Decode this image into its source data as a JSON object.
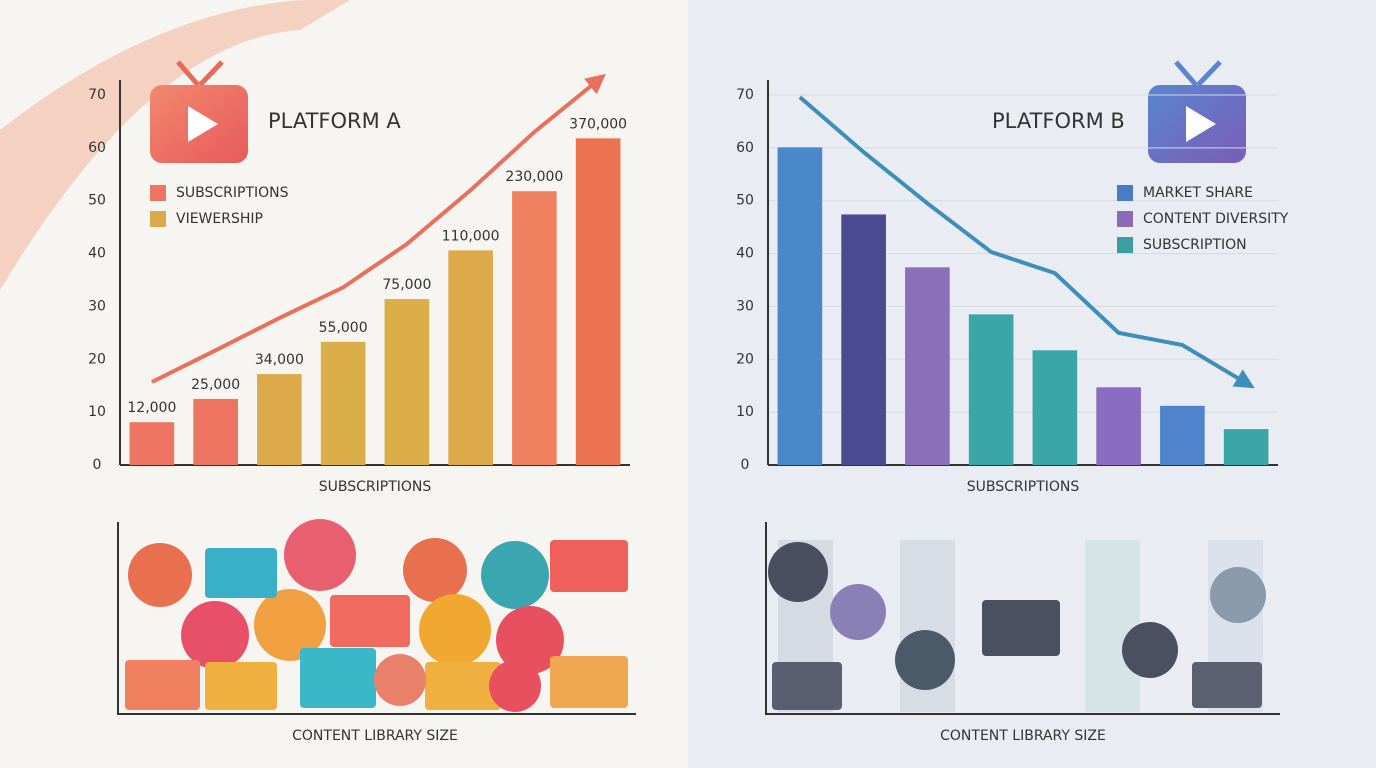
{
  "chart_data": [
    {
      "type": "bar",
      "title": "PLATFORM A",
      "xlabel": "SUBSCRIPTIONS",
      "caption": "CONTENT LIBRARY SIZE",
      "categories": [
        null,
        null,
        null,
        null,
        null,
        null,
        null,
        null
      ],
      "legend": [
        {
          "name": "SUBSCRIPTIONS",
          "color": "#ef7563"
        },
        {
          "name": "VIEWERSHIP",
          "color": "#d9a94a"
        }
      ],
      "series": [
        {
          "type": "bar",
          "colors": [
            "#ef7563",
            "#ee7462",
            "#dcaa48",
            "#dcae4a",
            "#dcae48",
            "#dcaa48",
            "#ef8060",
            "#ec7450"
          ],
          "values": [
            8.1,
            12.5,
            17.2,
            23.3,
            31.4,
            40.6,
            51.8,
            61.8
          ]
        },
        {
          "type": "line",
          "color": "#e8705c",
          "values": [
            15.7,
            21.7,
            27.8,
            33.6,
            41.8,
            52,
            63,
            72.8
          ]
        }
      ],
      "bar_labels": [
        "12,000",
        "25,000",
        "34,000",
        "55,000",
        "75,000",
        "110,000",
        "230,000",
        "370,000"
      ],
      "ylim": [
        0,
        70
      ],
      "yticks": [
        0,
        10,
        20,
        30,
        40,
        50,
        60,
        70
      ],
      "grid": false
    },
    {
      "type": "bar",
      "title": "PLATFORM B",
      "xlabel": "SUBSCRIPTIONS",
      "caption": "CONTENT LIBRARY SIZE",
      "categories": [
        null,
        null,
        null,
        null,
        null,
        null,
        null,
        null
      ],
      "legend": [
        {
          "name": "MARKET SHARE",
          "color": "#4a7cc4"
        },
        {
          "name": "CONTENT DIVERSITY",
          "color": "#8a6bb8"
        },
        {
          "name": "SUBSCRIPTION",
          "color": "#3a9f9f"
        }
      ],
      "series": [
        {
          "type": "bar",
          "colors": [
            "#4a88cc",
            "#4a4a92",
            "#8a70b8",
            "#3aa6a6",
            "#3aa6a6",
            "#8a6cc0",
            "#4f84cc",
            "#3aa6a6"
          ],
          "values": [
            60.1,
            47.4,
            37.4,
            28.5,
            21.7,
            14.7,
            11.2,
            6.8
          ]
        },
        {
          "type": "line",
          "color": "#3d8fb8",
          "values": [
            69.6,
            59.2,
            49.5,
            40.3,
            36.3,
            25,
            22.7,
            15.5
          ]
        }
      ],
      "ylim": [
        0,
        70
      ],
      "yticks": [
        0,
        10,
        20,
        30,
        40,
        50,
        60,
        70
      ],
      "grid": true
    }
  ]
}
